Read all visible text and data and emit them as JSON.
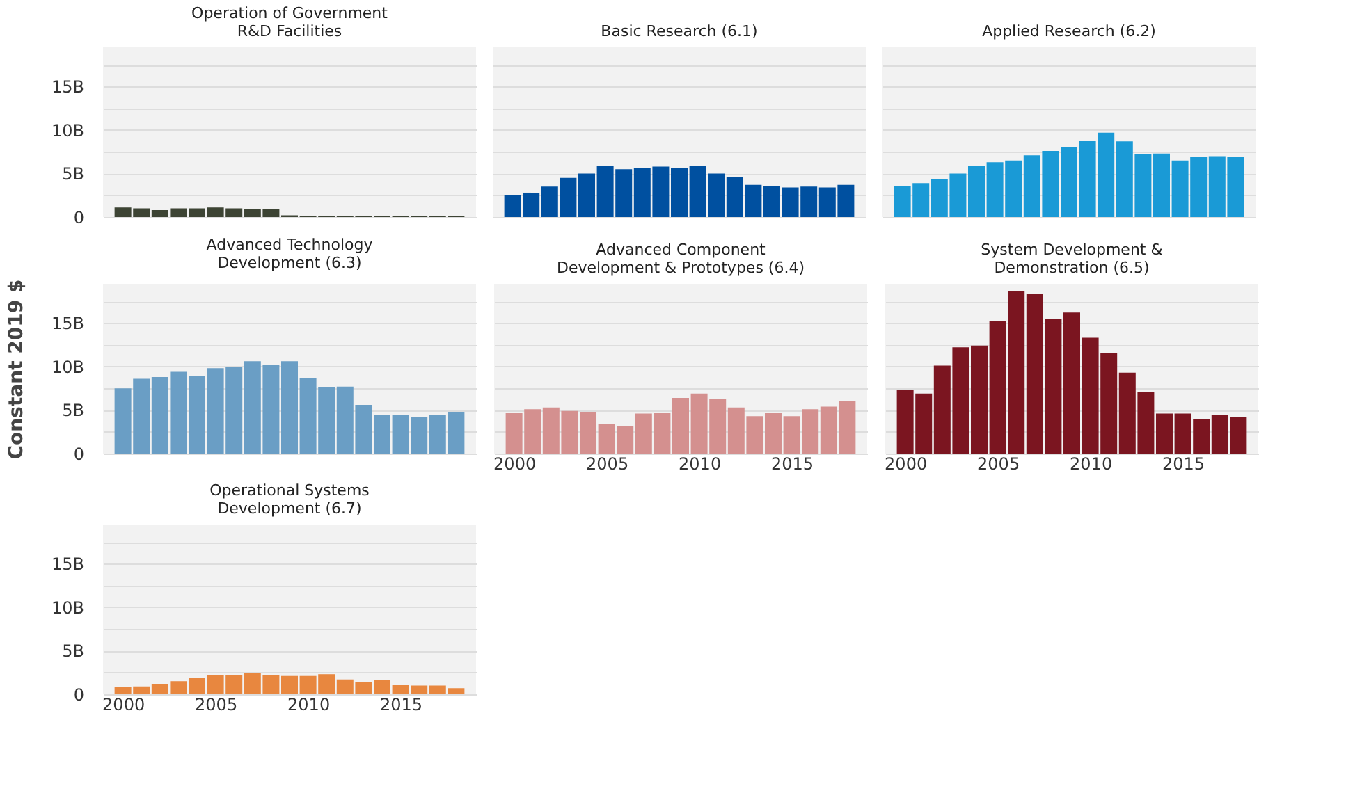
{
  "chart_data": [
    {
      "type": "bar",
      "title": "Operation of Government\nR&D Facilities",
      "x": [
        2000,
        2001,
        2002,
        2003,
        2004,
        2005,
        2006,
        2007,
        2008,
        2009,
        2010,
        2011,
        2012,
        2013,
        2014,
        2015,
        2016,
        2017,
        2018
      ],
      "values": [
        1.1,
        1.0,
        0.8,
        1.0,
        1.0,
        1.1,
        1.0,
        0.9,
        0.9,
        0.2,
        0.1,
        0.1,
        0.1,
        0.1,
        0.1,
        0.1,
        0.1,
        0.1,
        0.1
      ],
      "color": "#3d4434",
      "xlim": [
        1999.3,
        2018.7
      ],
      "xticks": [
        2000,
        2005,
        2010,
        2015
      ],
      "ylim": [
        0,
        19.5
      ],
      "yticks": [
        0,
        {
          "value": 2.5,
          "label": null
        },
        {
          "value": 5,
          "label": "5B"
        },
        {
          "value": 7.5,
          "label": null
        },
        {
          "value": 10,
          "label": "10B"
        },
        {
          "value": 12.5,
          "label": null
        },
        {
          "value": 15,
          "label": "15B"
        },
        {
          "value": 17.5,
          "label": null
        }
      ],
      "grid": "y",
      "tick_labels": "y"
    },
    {
      "type": "bar",
      "title": "Basic Research (6.1)",
      "x": [
        2000,
        2001,
        2002,
        2003,
        2004,
        2005,
        2006,
        2007,
        2008,
        2009,
        2010,
        2011,
        2012,
        2013,
        2014,
        2015,
        2016,
        2017,
        2018
      ],
      "values": [
        2.5,
        2.8,
        3.5,
        4.5,
        5.0,
        5.9,
        5.5,
        5.6,
        5.8,
        5.6,
        5.9,
        5.0,
        4.6,
        3.7,
        3.6,
        3.4,
        3.5,
        3.4,
        3.7
      ],
      "color": "#0050a0",
      "xlim": [
        1999.3,
        2018.7
      ],
      "xticks": [
        2000,
        2005,
        2010,
        2015
      ],
      "ylim": [
        0,
        19.5
      ],
      "yticks": [
        0,
        2.5,
        5,
        7.5,
        10,
        12.5,
        15,
        17.5
      ],
      "grid": "y",
      "tick_labels": false
    },
    {
      "type": "bar",
      "title": "Applied Research (6.2)",
      "x": [
        2000,
        2001,
        2002,
        2003,
        2004,
        2005,
        2006,
        2007,
        2008,
        2009,
        2010,
        2011,
        2012,
        2013,
        2014,
        2015,
        2016,
        2017,
        2018
      ],
      "values": [
        3.6,
        3.9,
        4.4,
        5.0,
        5.9,
        6.3,
        6.5,
        7.1,
        7.6,
        8.0,
        8.8,
        9.7,
        8.7,
        7.2,
        7.3,
        6.5,
        6.9,
        7.0,
        6.9
      ],
      "color": "#1a9ad6",
      "xlim": [
        1999.3,
        2018.7
      ],
      "xticks": [
        2000,
        2005,
        2010,
        2015
      ],
      "ylim": [
        0,
        19.5
      ],
      "yticks": [
        0,
        2.5,
        5,
        7.5,
        10,
        12.5,
        15,
        17.5
      ],
      "grid": "y",
      "tick_labels": false
    },
    {
      "type": "bar",
      "title": "Advanced Technology\nDevelopment (6.3)",
      "ylabel": "Constant 2019 $",
      "x": [
        2000,
        2001,
        2002,
        2003,
        2004,
        2005,
        2006,
        2007,
        2008,
        2009,
        2010,
        2011,
        2012,
        2013,
        2014,
        2015,
        2016,
        2017,
        2018
      ],
      "values": [
        7.5,
        8.6,
        8.8,
        9.4,
        8.9,
        9.8,
        9.9,
        10.6,
        10.2,
        10.6,
        8.7,
        7.6,
        7.7,
        5.6,
        4.4,
        4.4,
        4.2,
        4.4,
        4.8
      ],
      "color": "#6a9ec5",
      "xlim": [
        1999.3,
        2018.7
      ],
      "xticks": [
        2000,
        2005,
        2010,
        2015
      ],
      "ylim": [
        0,
        19.5
      ],
      "yticks": [
        0,
        {
          "value": 2.5,
          "label": null
        },
        {
          "value": 5,
          "label": "5B"
        },
        {
          "value": 7.5,
          "label": null
        },
        {
          "value": 10,
          "label": "10B"
        },
        {
          "value": 12.5,
          "label": null
        },
        {
          "value": 15,
          "label": "15B"
        },
        {
          "value": 17.5,
          "label": null
        }
      ],
      "grid": "y",
      "tick_labels": "y"
    },
    {
      "type": "bar",
      "title": "Advanced Component\nDevelopment & Prototypes (6.4)",
      "x": [
        2000,
        2001,
        2002,
        2003,
        2004,
        2005,
        2006,
        2007,
        2008,
        2009,
        2010,
        2011,
        2012,
        2013,
        2014,
        2015,
        2016,
        2017,
        2018
      ],
      "values": [
        4.7,
        5.1,
        5.3,
        4.9,
        4.8,
        3.4,
        3.2,
        4.6,
        4.7,
        6.4,
        6.9,
        6.3,
        5.3,
        4.3,
        4.7,
        4.3,
        5.1,
        5.4,
        6.0
      ],
      "color": "#d4908f",
      "xlim": [
        1999.3,
        2018.7
      ],
      "xticks": [
        2000,
        2005,
        2010,
        2015
      ],
      "ylim": [
        0,
        19.5
      ],
      "yticks": [
        0,
        2.5,
        5,
        7.5,
        10,
        12.5,
        15,
        17.5
      ],
      "grid": "y",
      "tick_labels": "x"
    },
    {
      "type": "bar",
      "title": "System Development &\nDemonstration (6.5)",
      "x": [
        2000,
        2001,
        2002,
        2003,
        2004,
        2005,
        2006,
        2007,
        2008,
        2009,
        2010,
        2011,
        2012,
        2013,
        2014,
        2015,
        2016,
        2017,
        2018
      ],
      "values": [
        7.3,
        6.9,
        10.1,
        12.2,
        12.4,
        15.2,
        18.7,
        18.3,
        15.5,
        16.2,
        13.3,
        11.5,
        9.3,
        7.1,
        4.6,
        4.6,
        4.0,
        4.4,
        4.2
      ],
      "color": "#7b1520",
      "xlim": [
        1999.3,
        2018.7
      ],
      "xticks": [
        2000,
        2005,
        2010,
        2015
      ],
      "ylim": [
        0,
        19.5
      ],
      "yticks": [
        0,
        2.5,
        5,
        7.5,
        10,
        12.5,
        15,
        17.5
      ],
      "grid": "y",
      "tick_labels": "x"
    },
    {
      "type": "bar",
      "title": "Operational Systems\nDevelopment (6.7)",
      "x": [
        2000,
        2001,
        2002,
        2003,
        2004,
        2005,
        2006,
        2007,
        2008,
        2009,
        2010,
        2011,
        2012,
        2013,
        2014,
        2015,
        2016,
        2017,
        2018
      ],
      "values": [
        0.8,
        0.9,
        1.2,
        1.5,
        1.9,
        2.2,
        2.2,
        2.4,
        2.2,
        2.1,
        2.1,
        2.3,
        1.7,
        1.4,
        1.6,
        1.1,
        1.0,
        1.0,
        0.7
      ],
      "color": "#e8873f",
      "xlim": [
        1999.3,
        2018.7
      ],
      "xticks": [
        2000,
        2005,
        2010,
        2015
      ],
      "ylim": [
        0,
        19.5
      ],
      "yticks": [
        0,
        {
          "value": 2.5,
          "label": null
        },
        {
          "value": 5,
          "label": "5B"
        },
        {
          "value": 7.5,
          "label": null
        },
        {
          "value": 10,
          "label": "10B"
        },
        {
          "value": 12.5,
          "label": null
        },
        {
          "value": 15,
          "label": "15B"
        },
        {
          "value": 17.5,
          "label": null
        }
      ],
      "grid": "y"
    }
  ]
}
